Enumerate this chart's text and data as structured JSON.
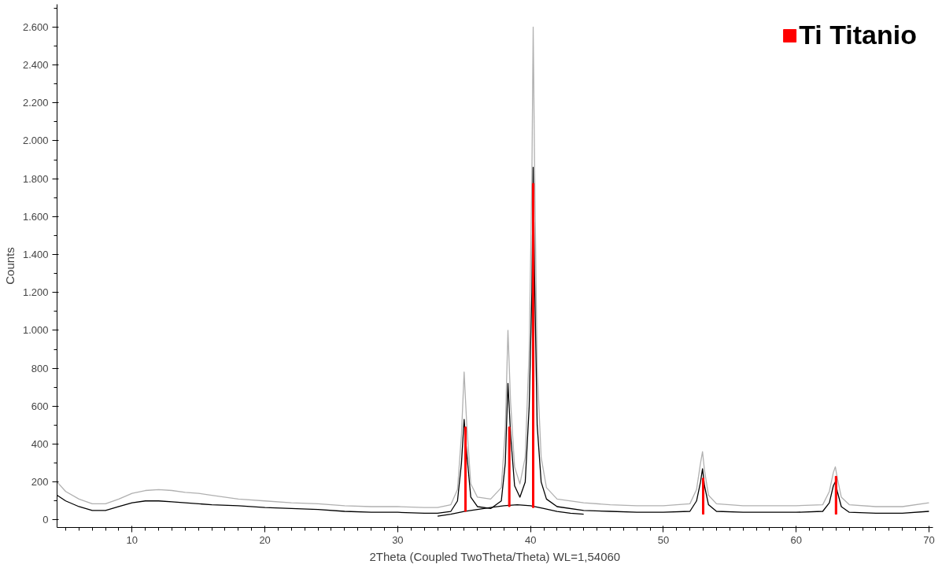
{
  "chart_data": {
    "type": "line",
    "xlabel": "2Theta (Coupled TwoTheta/Theta) WL=1,54060",
    "ylabel": "Counts",
    "xlim": [
      4.35,
      70.3
    ],
    "ylim": [
      -40,
      2720
    ],
    "xticks": [
      10,
      20,
      30,
      40,
      50,
      60,
      70
    ],
    "yticks": [
      0,
      200,
      400,
      600,
      800,
      {
        "value": 1000,
        "label": "1.000"
      },
      {
        "value": 1200,
        "label": "1.200"
      },
      {
        "value": 1400,
        "label": "1.400"
      },
      {
        "value": 1600,
        "label": "1.600"
      },
      {
        "value": 1800,
        "label": "1.800"
      },
      {
        "value": 2000,
        "label": "2.000"
      },
      {
        "value": 2200,
        "label": "2.200"
      },
      {
        "value": 2400,
        "label": "2.400"
      },
      {
        "value": 2600,
        "label": "2.600"
      }
    ],
    "grid": false,
    "legend": "top right",
    "series": [
      {
        "color": "#b0b0b0",
        "x": [
          4.35,
          5,
          6,
          7,
          8,
          9,
          10,
          11,
          12,
          13,
          14,
          15,
          16,
          18,
          20,
          22,
          24,
          26,
          28,
          30,
          32,
          33,
          34,
          34.5,
          34.8,
          35.0,
          35.2,
          35.5,
          36,
          37,
          37.8,
          38.1,
          38.3,
          38.5,
          38.8,
          39.2,
          39.6,
          39.9,
          40.1,
          40.2,
          40.3,
          40.5,
          40.8,
          41.2,
          42,
          44,
          46,
          48,
          50,
          52,
          52.5,
          52.8,
          52.95,
          53.1,
          53.4,
          54,
          56,
          58,
          60,
          62,
          62.5,
          62.8,
          62.95,
          63.1,
          63.4,
          64,
          66,
          68,
          70
        ],
        "values": [
          200,
          150,
          110,
          85,
          85,
          110,
          140,
          155,
          160,
          155,
          145,
          140,
          130,
          110,
          100,
          90,
          85,
          75,
          70,
          70,
          65,
          65,
          80,
          160,
          450,
          780,
          500,
          190,
          120,
          110,
          170,
          480,
          1000,
          620,
          280,
          190,
          330,
          900,
          1800,
          2600,
          1900,
          800,
          330,
          170,
          110,
          90,
          80,
          75,
          75,
          85,
          160,
          300,
          360,
          260,
          130,
          85,
          75,
          75,
          75,
          80,
          150,
          250,
          280,
          220,
          120,
          80,
          70,
          70,
          90
        ]
      },
      {
        "color": "#000000",
        "x": [
          4.35,
          5,
          6,
          7,
          8,
          9,
          10,
          11,
          12,
          13,
          14,
          15,
          16,
          18,
          20,
          22,
          24,
          26,
          28,
          30,
          32,
          33,
          34,
          34.5,
          34.8,
          35.0,
          35.2,
          35.5,
          36,
          37,
          37.8,
          38.1,
          38.3,
          38.5,
          38.8,
          39.2,
          39.6,
          39.9,
          40.1,
          40.2,
          40.3,
          40.5,
          40.8,
          41.2,
          42,
          44,
          46,
          48,
          50,
          52,
          52.5,
          52.8,
          52.95,
          53.1,
          53.4,
          54,
          56,
          58,
          60,
          62,
          62.5,
          62.8,
          62.95,
          63.1,
          63.4,
          64,
          66,
          68,
          70
        ],
        "values": [
          130,
          100,
          70,
          50,
          50,
          70,
          90,
          100,
          100,
          95,
          90,
          85,
          80,
          75,
          65,
          60,
          55,
          45,
          40,
          40,
          35,
          35,
          45,
          100,
          300,
          530,
          350,
          120,
          70,
          60,
          100,
          300,
          720,
          450,
          180,
          120,
          200,
          600,
          1200,
          1860,
          1300,
          500,
          200,
          110,
          70,
          50,
          45,
          40,
          40,
          45,
          100,
          200,
          270,
          180,
          80,
          45,
          40,
          40,
          40,
          45,
          90,
          180,
          200,
          150,
          70,
          40,
          35,
          35,
          45
        ]
      },
      {
        "color": "#000000",
        "x": [
          33,
          34,
          35,
          36,
          37,
          38,
          39,
          40,
          41,
          42,
          43,
          44
        ],
        "values": [
          20,
          30,
          45,
          55,
          65,
          75,
          80,
          75,
          60,
          45,
          35,
          30
        ]
      },
      {
        "type": "bar",
        "name": "Ti Titanio",
        "color": "#ff0000",
        "x": [
          35.1,
          38.4,
          40.2,
          53.0,
          63.0
        ],
        "base": [
          45,
          70,
          65,
          30,
          30
        ],
        "values": [
          445,
          420,
          1710,
          190,
          200
        ]
      }
    ]
  }
}
